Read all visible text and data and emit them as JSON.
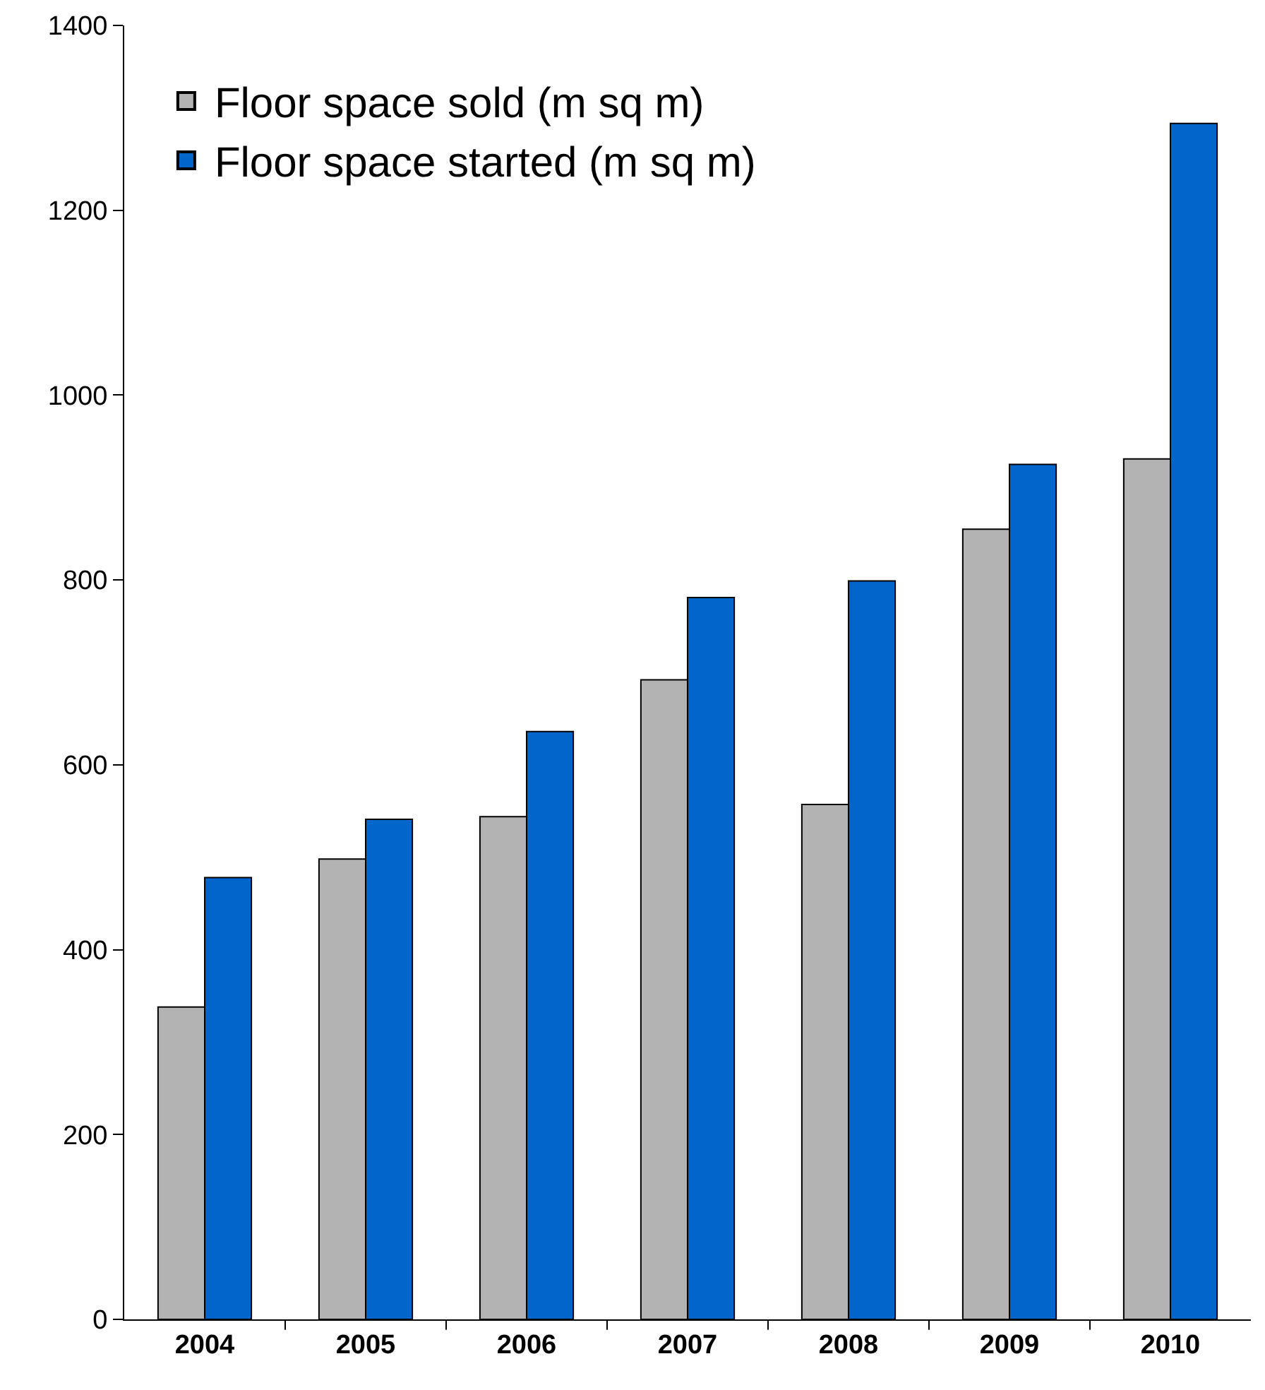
{
  "chart_data": {
    "type": "bar",
    "categories": [
      "2004",
      "2005",
      "2006",
      "2007",
      "2008",
      "2009",
      "2010"
    ],
    "series": [
      {
        "name": "Floor space sold (m sq m)",
        "color": "#b3b3b3",
        "values": [
          338,
          498,
          544,
          692,
          557,
          855,
          931
        ]
      },
      {
        "name": "Floor space started (m sq m)",
        "color": "#0066cc",
        "values": [
          478,
          541,
          636,
          781,
          799,
          925,
          1294
        ]
      }
    ],
    "ylim": [
      0,
      1400
    ],
    "yticks": [
      0,
      200,
      400,
      600,
      800,
      1000,
      1200,
      1400
    ],
    "grid": false,
    "legend": "top left"
  }
}
